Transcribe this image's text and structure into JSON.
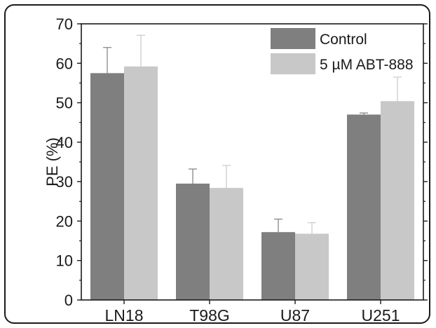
{
  "chart_data": {
    "type": "bar",
    "title": "",
    "xlabel": "",
    "ylabel": "PE (%)",
    "ylim": [
      0,
      70
    ],
    "y_ticks": [
      0,
      10,
      20,
      30,
      40,
      50,
      60,
      70
    ],
    "grid": false,
    "legend_position": "top-right",
    "categories": [
      "LN18",
      "T98G",
      "U87",
      "U251"
    ],
    "series": [
      {
        "name": "Control",
        "color": "#7f7f7f",
        "values": [
          57.5,
          29.5,
          17.2,
          47.0
        ],
        "errors": [
          6.5,
          3.7,
          3.3,
          0.4
        ]
      },
      {
        "name": "5 µM ABT-888",
        "color": "#c8c8c8",
        "values": [
          59.2,
          28.4,
          16.8,
          50.4
        ],
        "errors": [
          7.9,
          5.7,
          2.8,
          6.1
        ]
      }
    ]
  }
}
